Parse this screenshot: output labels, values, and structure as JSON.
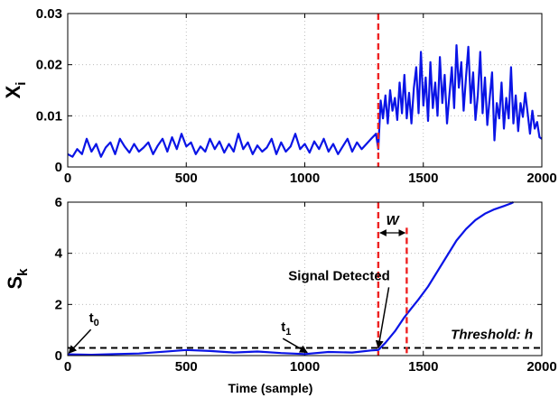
{
  "chart_data": [
    {
      "type": "line",
      "title": "",
      "xlabel": "",
      "ylabel": "X",
      "ylabel_sub": "i",
      "xlim": [
        0,
        2000
      ],
      "ylim": [
        0,
        0.03
      ],
      "xticks": [
        0,
        500,
        1000,
        1500,
        2000
      ],
      "yticks": [
        0,
        0.01,
        0.02,
        0.03
      ],
      "ytick_labels": [
        "0",
        "0.01",
        "0.02",
        "0.03"
      ],
      "grid": true,
      "series": [
        {
          "color": "#0a14e6",
          "x": [
            0,
            20,
            40,
            60,
            80,
            100,
            120,
            140,
            160,
            180,
            200,
            220,
            240,
            260,
            280,
            300,
            320,
            340,
            360,
            380,
            400,
            420,
            440,
            460,
            480,
            500,
            520,
            540,
            560,
            580,
            600,
            620,
            640,
            660,
            680,
            700,
            720,
            740,
            760,
            780,
            800,
            820,
            840,
            860,
            880,
            900,
            920,
            940,
            960,
            980,
            1000,
            1020,
            1040,
            1060,
            1080,
            1100,
            1120,
            1140,
            1160,
            1180,
            1200,
            1220,
            1240,
            1260,
            1280,
            1300,
            1310,
            1320,
            1330,
            1340,
            1350,
            1360,
            1370,
            1380,
            1390,
            1400,
            1410,
            1420,
            1430,
            1440,
            1450,
            1460,
            1470,
            1480,
            1490,
            1500,
            1510,
            1520,
            1530,
            1540,
            1550,
            1560,
            1570,
            1580,
            1590,
            1600,
            1610,
            1620,
            1630,
            1640,
            1650,
            1660,
            1670,
            1680,
            1690,
            1700,
            1710,
            1720,
            1730,
            1740,
            1750,
            1760,
            1770,
            1780,
            1790,
            1800,
            1810,
            1820,
            1830,
            1840,
            1850,
            1860,
            1870,
            1880,
            1890,
            1900,
            1910,
            1920,
            1930,
            1940,
            1950,
            1960,
            1970,
            1980,
            1990,
            2000
          ],
          "values": [
            0.0025,
            0.002,
            0.0035,
            0.0025,
            0.0055,
            0.003,
            0.0045,
            0.002,
            0.0038,
            0.0048,
            0.0025,
            0.0055,
            0.004,
            0.0028,
            0.0045,
            0.003,
            0.0038,
            0.0048,
            0.0025,
            0.0042,
            0.0055,
            0.003,
            0.0058,
            0.0035,
            0.0065,
            0.004,
            0.0048,
            0.0025,
            0.004,
            0.003,
            0.0055,
            0.0035,
            0.005,
            0.0028,
            0.0045,
            0.003,
            0.0065,
            0.0035,
            0.0048,
            0.0025,
            0.0042,
            0.003,
            0.0038,
            0.0055,
            0.0025,
            0.0048,
            0.003,
            0.004,
            0.0065,
            0.0035,
            0.0045,
            0.0028,
            0.005,
            0.0035,
            0.0055,
            0.003,
            0.0045,
            0.0025,
            0.004,
            0.0055,
            0.003,
            0.0048,
            0.0035,
            0.0045,
            0.0055,
            0.0065,
            0.0035,
            0.013,
            0.0095,
            0.014,
            0.0085,
            0.015,
            0.011,
            0.0135,
            0.0092,
            0.0165,
            0.0105,
            0.018,
            0.0095,
            0.0145,
            0.0085,
            0.0155,
            0.0195,
            0.0105,
            0.0225,
            0.012,
            0.0175,
            0.009,
            0.0205,
            0.0115,
            0.0165,
            0.01,
            0.0215,
            0.0125,
            0.018,
            0.0085,
            0.014,
            0.0195,
            0.0115,
            0.0238,
            0.0155,
            0.0205,
            0.011,
            0.0175,
            0.0235,
            0.0125,
            0.0185,
            0.0092,
            0.014,
            0.0225,
            0.0105,
            0.0175,
            0.0082,
            0.0135,
            0.0185,
            0.0052,
            0.0125,
            0.0095,
            0.0165,
            0.0075,
            0.0135,
            0.0095,
            0.0195,
            0.0085,
            0.014,
            0.007,
            0.0125,
            0.0098,
            0.0145,
            0.0105,
            0.0065,
            0.011,
            0.0075,
            0.0088,
            0.0058,
            0.0055
          ]
        }
      ],
      "vline": {
        "x": 1310,
        "color": "#ee2222"
      }
    },
    {
      "type": "line",
      "title": "",
      "xlabel": "Time (sample)",
      "ylabel": "S",
      "ylabel_sub": "k",
      "xlim": [
        0,
        2000
      ],
      "ylim": [
        0,
        6
      ],
      "xticks": [
        0,
        500,
        1000,
        1500,
        2000
      ],
      "yticks": [
        0,
        2,
        4,
        6
      ],
      "ytick_labels": [
        "0",
        "2",
        "4",
        "6"
      ],
      "grid": true,
      "series": [
        {
          "color": "#0a14e6",
          "x": [
            0,
            100,
            200,
            300,
            400,
            500,
            600,
            700,
            800,
            900,
            1000,
            1100,
            1200,
            1280,
            1310,
            1340,
            1380,
            1420,
            1450,
            1480,
            1520,
            1560,
            1600,
            1640,
            1680,
            1720,
            1760,
            1800,
            1840,
            1870,
            1880
          ],
          "values": [
            0.05,
            0.03,
            0.06,
            0.08,
            0.15,
            0.22,
            0.18,
            0.12,
            0.16,
            0.1,
            0.06,
            0.14,
            0.12,
            0.2,
            0.22,
            0.5,
            0.95,
            1.5,
            1.85,
            2.2,
            2.7,
            3.3,
            3.9,
            4.5,
            4.95,
            5.3,
            5.55,
            5.72,
            5.85,
            5.95,
            6.0
          ]
        }
      ],
      "threshold": {
        "value": 0.3,
        "label": "Threshold: h"
      },
      "vlines": [
        {
          "x": 1310,
          "color": "#ee2222"
        },
        {
          "x": 1430,
          "color": "#ee2222",
          "top": 5.0
        }
      ],
      "window": {
        "label": "W",
        "from": 1310,
        "to": 1430,
        "y": 4.8
      },
      "annotations": [
        {
          "text": "t",
          "sub": "0",
          "label_x": 90,
          "label_y": 1.3,
          "arrow_x": 5,
          "arrow_y": 0.1
        },
        {
          "text": "t",
          "sub": "1",
          "label_x": 900,
          "label_y": 0.95,
          "arrow_x": 1010,
          "arrow_y": 0.12
        },
        {
          "text": "Signal Detected",
          "label_x": 1145,
          "label_y": 2.95,
          "arrow_x": 1310,
          "arrow_y": 0.3
        }
      ]
    }
  ]
}
